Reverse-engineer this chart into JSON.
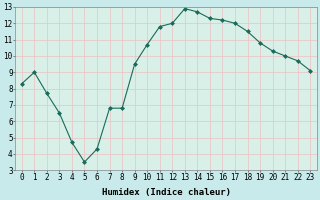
{
  "x": [
    0,
    1,
    2,
    3,
    4,
    5,
    6,
    7,
    8,
    9,
    10,
    11,
    12,
    13,
    14,
    15,
    16,
    17,
    18,
    19,
    20,
    21,
    22,
    23
  ],
  "y": [
    8.3,
    9.0,
    7.7,
    6.5,
    4.7,
    3.5,
    4.3,
    6.8,
    6.8,
    9.5,
    10.7,
    11.8,
    12.0,
    12.9,
    12.7,
    12.3,
    12.2,
    12.0,
    11.5,
    10.8,
    10.3,
    10.0,
    9.7,
    9.1
  ],
  "xlabel": "Humidex (Indice chaleur)",
  "ylim": [
    3,
    13
  ],
  "xlim_min": -0.5,
  "xlim_max": 23.5,
  "yticks": [
    3,
    4,
    5,
    6,
    7,
    8,
    9,
    10,
    11,
    12,
    13
  ],
  "xticks": [
    0,
    1,
    2,
    3,
    4,
    5,
    6,
    7,
    8,
    9,
    10,
    11,
    12,
    13,
    14,
    15,
    16,
    17,
    18,
    19,
    20,
    21,
    22,
    23
  ],
  "line_color": "#1a6b5a",
  "marker_color": "#1a6b5a",
  "bg_color": "#c8eaea",
  "grid_color": "#e8c8c8",
  "axis_bg_color": "#d8f0e8",
  "tick_label_fontsize": 5.5,
  "xlabel_fontsize": 6.5,
  "linewidth": 0.8,
  "markersize": 2.0
}
